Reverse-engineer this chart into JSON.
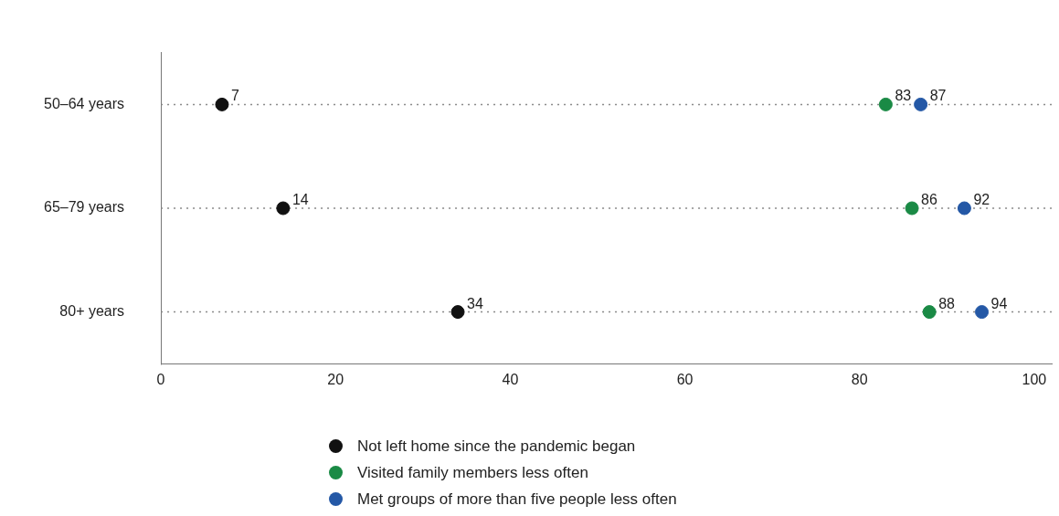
{
  "chart_data": {
    "type": "scatter",
    "orientation": "horizontal",
    "categories": [
      "50–64 years",
      "65–79 years",
      "80+ years"
    ],
    "series": [
      {
        "name": "Not left home since the pandemic began",
        "color": "#111111",
        "values": [
          7,
          14,
          34
        ]
      },
      {
        "name": "Visited family members less often",
        "color": "#1a8a45",
        "values": [
          83,
          86,
          88
        ]
      },
      {
        "name": "Met groups of more than five people less often",
        "color": "#2458a6",
        "values": [
          87,
          92,
          94
        ]
      }
    ],
    "xlim": [
      0,
      102
    ],
    "xticks": [
      0,
      20,
      40,
      60,
      80,
      100
    ],
    "grid": "y",
    "line_style": "dotted",
    "marker": "circle",
    "data_labels": true,
    "legend": "bottom"
  }
}
